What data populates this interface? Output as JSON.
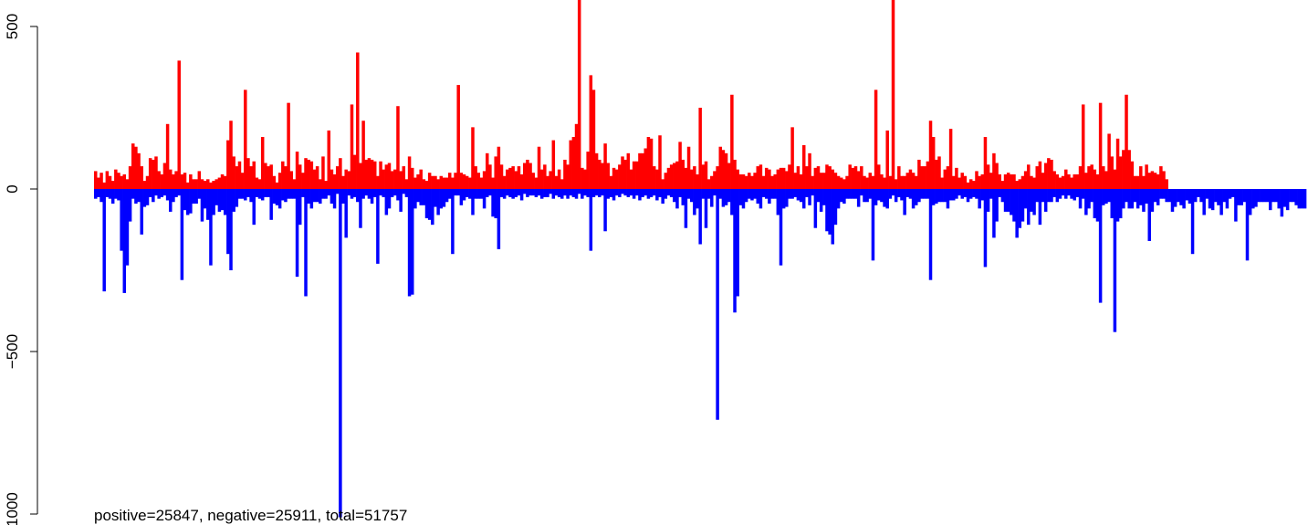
{
  "chart_data": {
    "type": "bar",
    "title": "",
    "xlabel": "",
    "ylabel": "",
    "ylim": [
      -1000,
      500
    ],
    "yticks": [
      500,
      0,
      -500,
      -1000
    ],
    "ytick_labels": [
      "500",
      "0",
      "−500",
      "−1000"
    ],
    "grid": false,
    "legend": "none",
    "annotation": "positive=25847, negative=25911, total=51757",
    "colors": {
      "positive": "#ff0000",
      "negative": "#0000ff",
      "axis": "#000000"
    },
    "series": [
      {
        "color": "#ff0000",
        "values": [
          55,
          35,
          50,
          20,
          55,
          40,
          25,
          60,
          50,
          40,
          45,
          30,
          70,
          140,
          130,
          110,
          70,
          25,
          40,
          95,
          90,
          100,
          55,
          45,
          80,
          200,
          60,
          45,
          55,
          395,
          45,
          50,
          20,
          45,
          30,
          30,
          55,
          30,
          25,
          30,
          20,
          25,
          30,
          35,
          45,
          40,
          150,
          210,
          100,
          70,
          85,
          50,
          305,
          95,
          70,
          85,
          35,
          30,
          160,
          80,
          70,
          75,
          40,
          20,
          50,
          85,
          70,
          265,
          55,
          30,
          115,
          75,
          50,
          95,
          90,
          85,
          60,
          70,
          30,
          100,
          25,
          180,
          60,
          45,
          70,
          95,
          40,
          60,
          55,
          260,
          105,
          420,
          80,
          210,
          90,
          95,
          90,
          85,
          40,
          85,
          60,
          75,
          80,
          55,
          60,
          255,
          55,
          70,
          30,
          100,
          65,
          35,
          45,
          60,
          30,
          25,
          50,
          40,
          40,
          30,
          40,
          35,
          35,
          50,
          35,
          50,
          320,
          50,
          45,
          40,
          35,
          190,
          70,
          50,
          35,
          55,
          110,
          75,
          35,
          100,
          130,
          75,
          40,
          60,
          65,
          70,
          55,
          70,
          45,
          80,
          90,
          80,
          50,
          35,
          130,
          60,
          75,
          40,
          55,
          150,
          40,
          60,
          30,
          90,
          75,
          150,
          160,
          200,
          650,
          65,
          60,
          115,
          350,
          305,
          110,
          90,
          80,
          140,
          80,
          40,
          65,
          60,
          75,
          100,
          90,
          110,
          60,
          85,
          85,
          110,
          110,
          125,
          160,
          155,
          70,
          60,
          165,
          30,
          50,
          65,
          75,
          80,
          85,
          145,
          90,
          65,
          130,
          60,
          70,
          45,
          250,
          75,
          85,
          30,
          40,
          55,
          70,
          130,
          120,
          110,
          80,
          290,
          90,
          60,
          45,
          45,
          40,
          50,
          40,
          50,
          70,
          75,
          40,
          65,
          60,
          40,
          45,
          60,
          65,
          65,
          55,
          75,
          190,
          50,
          70,
          45,
          135,
          70,
          110,
          40,
          65,
          70,
          50,
          50,
          75,
          70,
          60,
          50,
          40,
          35,
          30,
          40,
          75,
          65,
          70,
          55,
          70,
          40,
          35,
          50,
          40,
          305,
          75,
          45,
          35,
          180,
          40,
          650,
          30,
          70,
          40,
          40,
          50,
          60,
          50,
          40,
          90,
          70,
          70,
          85,
          210,
          160,
          90,
          100,
          35,
          60,
          70,
          185,
          40,
          65,
          35,
          50,
          40,
          20,
          30,
          25,
          55,
          40,
          45,
          160,
          75,
          50,
          110,
          80,
          45,
          25,
          45,
          50,
          45,
          45,
          25,
          30,
          40,
          55,
          75,
          40,
          35,
          70,
          85,
          50,
          80,
          95,
          90,
          55,
          45,
          35,
          40,
          60,
          45,
          35,
          45,
          45,
          70,
          260,
          50,
          70,
          75,
          60,
          45,
          265,
          70,
          55,
          170,
          100,
          60,
          155,
          100,
          120,
          290,
          120,
          85,
          40,
          40,
          70,
          40,
          75,
          50,
          55,
          50,
          45,
          70,
          55,
          30
        ]
      },
      {
        "color": "#0000ff",
        "values": [
          -30,
          -25,
          -40,
          -315,
          -25,
          -30,
          -45,
          -30,
          -35,
          -190,
          -320,
          -235,
          -100,
          -30,
          -45,
          -40,
          -140,
          -55,
          -50,
          -25,
          -40,
          -20,
          -30,
          -25,
          -20,
          -35,
          -70,
          -40,
          -25,
          -20,
          -280,
          -65,
          -80,
          -75,
          -45,
          -45,
          -30,
          -100,
          -60,
          -95,
          -235,
          -80,
          -50,
          -70,
          -65,
          -80,
          -200,
          -250,
          -70,
          -55,
          -30,
          -30,
          -35,
          -25,
          -40,
          -110,
          -25,
          -30,
          -35,
          -25,
          -25,
          -95,
          -45,
          -50,
          -60,
          -35,
          -40,
          -30,
          -30,
          -30,
          -270,
          -110,
          -25,
          -330,
          -45,
          -60,
          -40,
          -40,
          -45,
          -30,
          -30,
          -20,
          -45,
          -60,
          -15,
          -1010,
          -45,
          -150,
          -20,
          -30,
          -25,
          -40,
          -120,
          -30,
          -20,
          -30,
          -45,
          -25,
          -230,
          -20,
          -25,
          -80,
          -60,
          -25,
          -20,
          -35,
          -70,
          -15,
          -25,
          -330,
          -325,
          -60,
          -40,
          -50,
          -50,
          -90,
          -95,
          -110,
          -55,
          -80,
          -60,
          -55,
          -40,
          -30,
          -200,
          -20,
          -20,
          -50,
          -35,
          -25,
          -30,
          -80,
          -30,
          -30,
          -30,
          -60,
          -25,
          -20,
          -85,
          -90,
          -185,
          -25,
          -30,
          -20,
          -25,
          -30,
          -25,
          -20,
          -35,
          -15,
          -25,
          -20,
          -20,
          -25,
          -20,
          -30,
          -25,
          -25,
          -15,
          -30,
          -20,
          -25,
          -30,
          -20,
          -30,
          -20,
          -25,
          -30,
          -15,
          -30,
          -20,
          -25,
          -190,
          -25,
          -20,
          -25,
          -20,
          -130,
          -30,
          -25,
          -35,
          -20,
          -25,
          -15,
          -20,
          -25,
          -20,
          -30,
          -20,
          -35,
          -25,
          -20,
          -30,
          -25,
          -20,
          -35,
          -25,
          -45,
          -30,
          -20,
          -25,
          -40,
          -60,
          -25,
          -50,
          -120,
          -30,
          -40,
          -80,
          -60,
          -170,
          -30,
          -120,
          -30,
          -55,
          -20,
          -710,
          -30,
          -55,
          -50,
          -40,
          -80,
          -380,
          -330,
          -50,
          -60,
          -40,
          -30,
          -35,
          -30,
          -45,
          -60,
          -25,
          -30,
          -45,
          -30,
          -30,
          -80,
          -235,
          -60,
          -55,
          -30,
          -30,
          -25,
          -35,
          -40,
          -60,
          -25,
          -50,
          -20,
          -120,
          -40,
          -70,
          -50,
          -130,
          -140,
          -170,
          -110,
          -60,
          -40,
          -45,
          -30,
          -30,
          -30,
          -30,
          -55,
          -20,
          -40,
          -40,
          -30,
          -220,
          -50,
          -35,
          -40,
          -55,
          -60,
          -30,
          -20,
          -40,
          -25,
          -35,
          -80,
          -25,
          -30,
          -60,
          -50,
          -40,
          -30,
          -30,
          -30,
          -280,
          -50,
          -45,
          -40,
          -40,
          -40,
          -60,
          -35,
          -35,
          -30,
          -20,
          -30,
          -25,
          -40,
          -30,
          -25,
          -30,
          -60,
          -35,
          -240,
          -70,
          -30,
          -150,
          -100,
          -25,
          -40,
          -70,
          -70,
          -80,
          -100,
          -150,
          -120,
          -100,
          -60,
          -110,
          -70,
          -80,
          -40,
          -110,
          -40,
          -70,
          -40,
          -40,
          -25,
          -40,
          -30,
          -20,
          -30,
          -20,
          -30,
          -35,
          -25,
          -60,
          -30,
          -80,
          -60,
          -40,
          -90,
          -100,
          -350,
          -50,
          -45,
          -40,
          -90,
          -440,
          -100,
          -90,
          -60,
          -40,
          -60,
          -60,
          -40,
          -60,
          -50,
          -70,
          -45,
          -160,
          -70,
          -40,
          -50,
          -30,
          -30,
          -40,
          -40,
          -70,
          -55,
          -40,
          -50,
          -60,
          -35,
          -45,
          -200,
          -40,
          -25,
          -40,
          -80,
          -30,
          -60,
          -65,
          -40,
          -50,
          -80,
          -40,
          -60,
          -30,
          -25,
          -100,
          -50,
          -50,
          -40,
          -220,
          -80,
          -60,
          -55,
          -40,
          -40,
          -40,
          -40,
          -65,
          -40,
          -40,
          -60,
          -85,
          -55,
          -65,
          -40,
          -40,
          -50,
          -60,
          -60,
          -60
        ]
      }
    ]
  }
}
